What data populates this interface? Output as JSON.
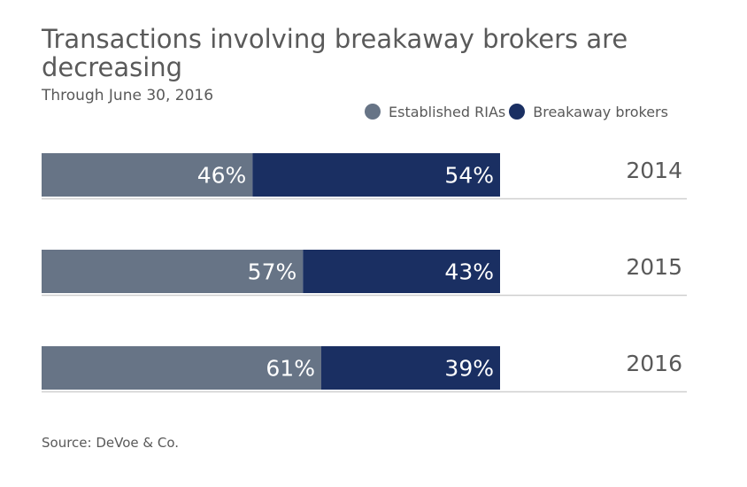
{
  "header": {
    "title": "Transactions involving breakaway brokers are decreasing",
    "subtitle": "Through June 30, 2016"
  },
  "footer": {
    "source": "Source: DeVoe & Co."
  },
  "colors": {
    "established": "#677486",
    "breakaway": "#1a2f62",
    "rule": "#cfcfcf",
    "label_inside": "#ffffff",
    "year_label": "#595959"
  },
  "chart_data": {
    "type": "bar",
    "orientation": "horizontal",
    "stacked": true,
    "value_format": "percent",
    "categories": [
      "2014",
      "2015",
      "2016"
    ],
    "series": [
      {
        "name": "Established RIAs",
        "values": [
          46,
          57,
          61
        ],
        "color": "#677486"
      },
      {
        "name": "Breakaway brokers",
        "values": [
          54,
          43,
          39
        ],
        "color": "#1a2f62"
      }
    ],
    "data_labels": [
      [
        "46%",
        "57%",
        "61%"
      ],
      [
        "54%",
        "43%",
        "39%"
      ]
    ],
    "xlim": [
      0,
      100
    ],
    "legend_position": "top-right",
    "grid": false
  }
}
